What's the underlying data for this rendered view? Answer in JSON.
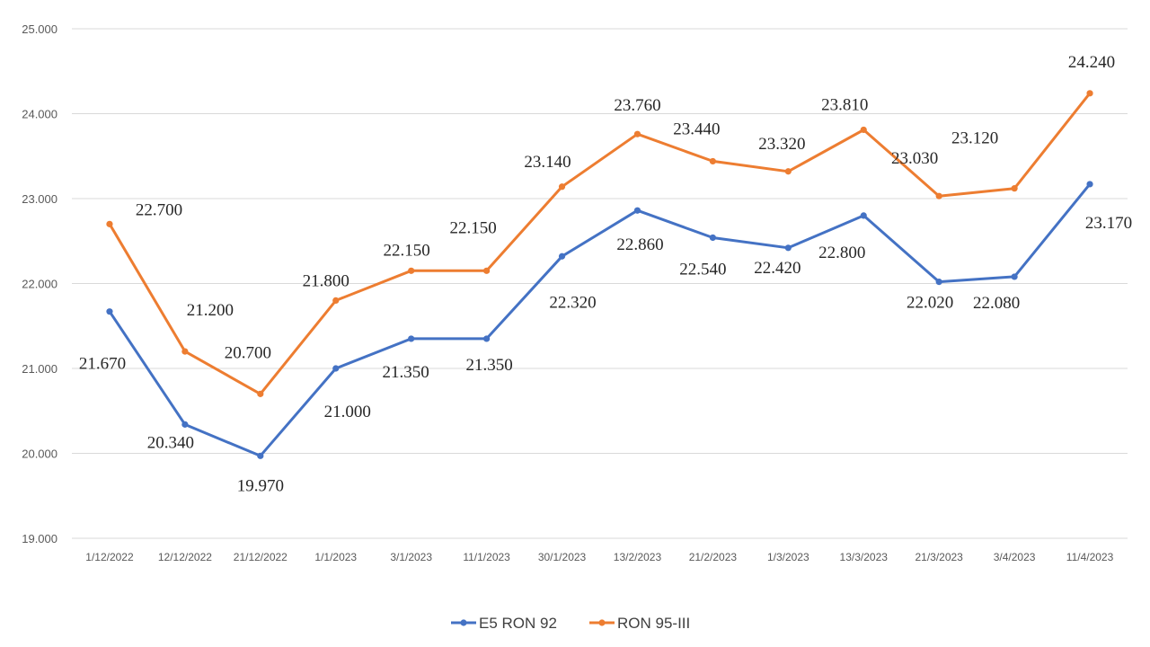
{
  "chart_data": {
    "type": "line",
    "categories": [
      "1/12/2022",
      "12/12/2022",
      "21/12/2022",
      "1/1/2023",
      "3/1/2023",
      "11/1/2023",
      "30/1/2023",
      "13/2/2023",
      "21/2/2023",
      "1/3/2023",
      "13/3/2023",
      "21/3/2023",
      "3/4/2023",
      "11/4/2023"
    ],
    "ylim": [
      19000,
      25000
    ],
    "yticks": [
      {
        "value": 19000,
        "label": "19.000"
      },
      {
        "value": 20000,
        "label": "20.000"
      },
      {
        "value": 21000,
        "label": "21.000"
      },
      {
        "value": 22000,
        "label": "22.000"
      },
      {
        "value": 23000,
        "label": "23.000"
      },
      {
        "value": 24000,
        "label": "24.000"
      },
      {
        "value": 25000,
        "label": "25.000"
      }
    ],
    "grid": true,
    "legend_position": "bottom",
    "series": [
      {
        "name": "E5 RON 92",
        "color": "#4472c4",
        "values": [
          21670,
          20340,
          19970,
          21000,
          21350,
          21350,
          22320,
          22860,
          22540,
          22420,
          22800,
          22020,
          22080,
          23170
        ],
        "labels": [
          "21.670",
          "20.340",
          "19.970",
          "21.000",
          "21.350",
          "21.350",
          "22.320",
          "22.860",
          "22.540",
          "22.420",
          "22.800",
          "22.020",
          "22.080",
          "23.170"
        ]
      },
      {
        "name": "RON 95-III",
        "color": "#ed7d31",
        "values": [
          22700,
          21200,
          20700,
          21800,
          22150,
          22150,
          23140,
          23760,
          23440,
          23320,
          23810,
          23030,
          23120,
          24240
        ],
        "labels": [
          "22.700",
          "21.200",
          "20.700",
          "21.800",
          "22.150",
          "22.150",
          "23.140",
          "23.760",
          "23.440",
          "23.320",
          "23.810",
          "23.030",
          "23.120",
          "24.240"
        ]
      }
    ]
  }
}
